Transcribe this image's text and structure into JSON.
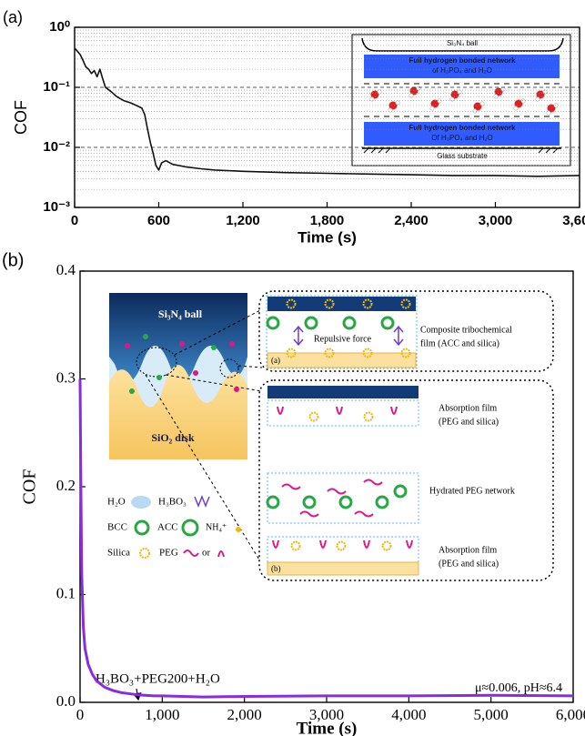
{
  "chart_data": [
    {
      "type": "line",
      "panel_label": "(a)",
      "xlabel": "Time (s)",
      "ylabel": "COF",
      "log_y": true,
      "grid": true,
      "color": "#111111",
      "x": [
        0,
        20,
        40,
        60,
        80,
        100,
        120,
        140,
        160,
        180,
        200,
        220,
        260,
        300,
        350,
        400,
        440,
        480,
        500,
        520,
        540,
        560,
        580,
        600,
        620,
        650,
        700,
        800,
        900,
        1000,
        1200,
        1500,
        1800,
        2100,
        2400,
        2700,
        3000,
        3300,
        3600
      ],
      "values": [
        0.45,
        0.4,
        0.35,
        0.28,
        0.22,
        0.2,
        0.17,
        0.19,
        0.15,
        0.2,
        0.14,
        0.1,
        0.085,
        0.07,
        0.06,
        0.055,
        0.05,
        0.045,
        0.035,
        0.02,
        0.012,
        0.008,
        0.005,
        0.0042,
        0.0055,
        0.006,
        0.0052,
        0.0047,
        0.0044,
        0.0042,
        0.004,
        0.0038,
        0.0037,
        0.0036,
        0.0035,
        0.0034,
        0.0034,
        0.0033,
        0.0034
      ],
      "xlim": [
        0,
        3600
      ],
      "xticks": [
        0,
        600,
        {
          "value": 1200,
          "label": "1,200"
        },
        {
          "value": 1800,
          "label": "1,800"
        },
        {
          "value": 2400,
          "label": "2,400"
        },
        {
          "value": 3000,
          "label": "3,000"
        },
        {
          "value": 3600,
          "label": "3,600"
        }
      ],
      "ylim": [
        0.001,
        1
      ],
      "yticks": [
        {
          "value": 0.001,
          "label": "10⁻³"
        },
        {
          "value": 0.01,
          "label": "10⁻²"
        },
        {
          "value": 0.1,
          "label": "10⁻¹"
        },
        {
          "value": 1,
          "label": "10⁰"
        }
      ],
      "minor_yticks": [
        0.002,
        0.003,
        0.004,
        0.005,
        0.006,
        0.007,
        0.008,
        0.009,
        0.02,
        0.03,
        0.04,
        0.05,
        0.06,
        0.07,
        0.08,
        0.09,
        0.2,
        0.3,
        0.4,
        0.5,
        0.6,
        0.7,
        0.8,
        0.9
      ],
      "inset": {
        "ball_label": "Si₃N₄ ball",
        "top_layer": [
          "Full hydrogen bonded network",
          "of H₃PO₄ and H₂O"
        ],
        "bottom_layer": [
          "Full hydrogen bonded network",
          "Of H₃PO₄ and H₂O"
        ],
        "substrate_label": "Glass substrate"
      }
    },
    {
      "type": "line",
      "panel_label": "(b)",
      "xlabel": "Time (s)",
      "ylabel": "COF",
      "log_y": false,
      "grid": false,
      "color": "#8a2be2",
      "x": [
        0,
        10,
        20,
        40,
        60,
        100,
        150,
        200,
        300,
        400,
        500,
        700,
        900,
        1000,
        1500,
        2000,
        3000,
        4000,
        5000,
        6000
      ],
      "values": [
        0.3,
        0.2,
        0.12,
        0.07,
        0.05,
        0.035,
        0.026,
        0.02,
        0.014,
        0.011,
        0.009,
        0.007,
        0.006,
        0.006,
        0.005,
        0.0055,
        0.006,
        0.006,
        0.0065,
        0.006
      ],
      "xlim": [
        0,
        6000
      ],
      "xticks": [
        0,
        {
          "value": 1000,
          "label": "1,000"
        },
        {
          "value": 2000,
          "label": "2,000"
        },
        {
          "value": 3000,
          "label": "3,000"
        },
        {
          "value": 4000,
          "label": "4,000"
        },
        {
          "value": 5000,
          "label": "5,000"
        },
        {
          "value": 6000,
          "label": "6,000"
        }
      ],
      "ylim": [
        0,
        0.4
      ],
      "yticks": [
        {
          "value": 0,
          "label": "0.0"
        },
        0.1,
        0.2,
        0.3,
        0.4
      ],
      "annotations": [
        "H₃BO₃+PEG200+H₂O",
        "μ≈0.006, pH≈6.4"
      ],
      "inset": {
        "ball_label": "Si₃N₄ ball",
        "disk_label": "SiO₂ disk",
        "legend": [
          "H₂O",
          "H₃BO₃",
          "BCC",
          "ACC",
          "NH₄⁺",
          "Silica",
          "PEG",
          "or"
        ],
        "film_a": [
          "Repulsive force",
          "Composite tribochemical",
          "film (ACC and silica)",
          "(a)"
        ],
        "film_b": [
          "Absorption film",
          "(PEG and silica)",
          "Hydrated PEG network",
          "Absorption film",
          "(PEG and silica)",
          "(b)"
        ]
      }
    }
  ]
}
